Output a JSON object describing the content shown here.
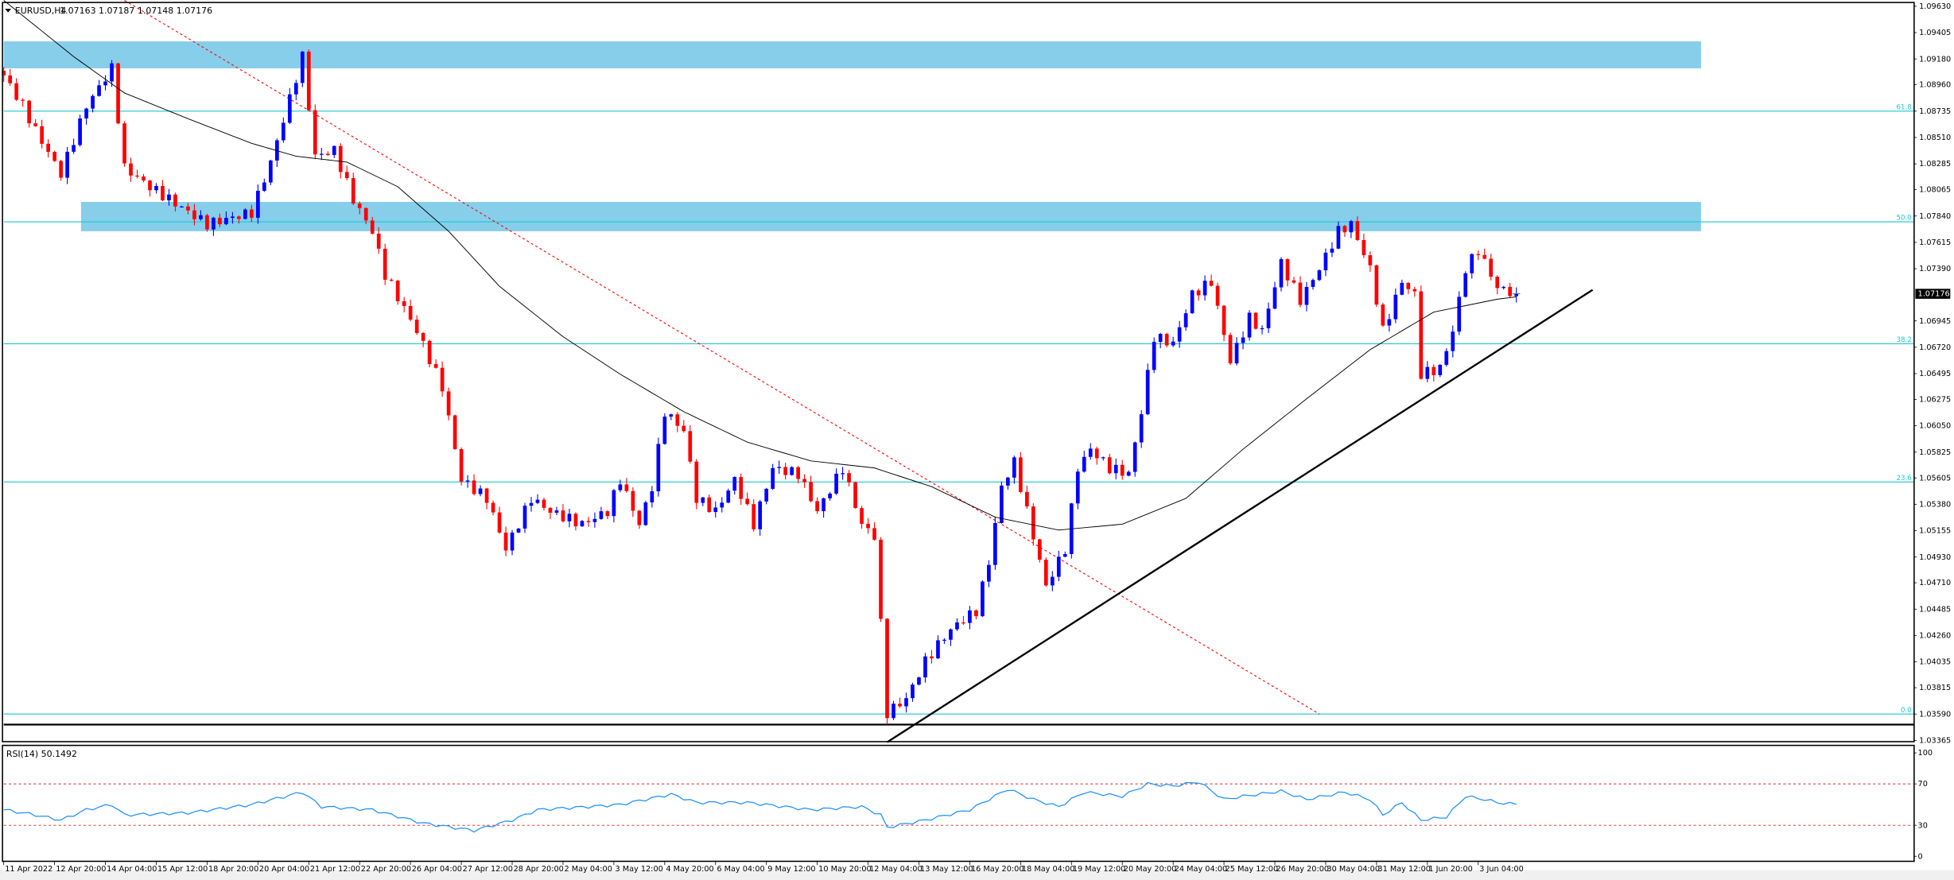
{
  "header": {
    "symbol": "EURUSD,H4",
    "ohlc": "1.07163 1.07187 1.07148 1.07176",
    "menu_icon": "triangle-down-icon"
  },
  "rsi_panel": {
    "label": "RSI(14) 50.1492",
    "levels": [
      "100",
      "70",
      "30",
      "0"
    ]
  },
  "current_price": "1.07176",
  "colors": {
    "bull": "#0000ff",
    "bear": "#ff0000",
    "zone": "#87ceeb",
    "fib": "#19c8d0",
    "sma": "#000000",
    "rsi": "#1e90ff",
    "downtrend": "#ff0000"
  },
  "chart_data": {
    "type": "candlestick",
    "symbol": "EURUSD",
    "timeframe": "H4",
    "ylim": [
      1.03365,
      1.0963
    ],
    "price_ticks": [
      "1.09630",
      "1.09405",
      "1.09180",
      "1.08960",
      "1.08735",
      "1.08510",
      "1.08285",
      "1.08065",
      "1.07840",
      "1.07615",
      "1.07390",
      "1.06945",
      "1.06720",
      "1.06495",
      "1.06275",
      "1.06050",
      "1.05825",
      "1.05605",
      "1.05380",
      "1.05155",
      "1.04930",
      "1.04710",
      "1.04485",
      "1.04260",
      "1.04035",
      "1.03815",
      "1.03590",
      "1.03365"
    ],
    "time_ticks": [
      "11 Apr 2022",
      "12 Apr 20:00",
      "14 Apr 04:00",
      "15 Apr 12:00",
      "18 Apr 20:00",
      "20 Apr 04:00",
      "21 Apr 12:00",
      "22 Apr 20:00",
      "26 Apr 04:00",
      "27 Apr 12:00",
      "28 Apr 20:00",
      "2 May 04:00",
      "3 May 12:00",
      "4 May 20:00",
      "6 May 04:00",
      "9 May 12:00",
      "10 May 20:00",
      "12 May 04:00",
      "13 May 12:00",
      "16 May 20:00",
      "18 May 04:00",
      "19 May 12:00",
      "20 May 20:00",
      "24 May 04:00",
      "25 May 12:00",
      "26 May 20:00",
      "30 May 04:00",
      "31 May 12:00",
      "1 Jun 20:00",
      "3 Jun 04:00"
    ],
    "bars_per_time_tick": 8,
    "close_keypoints": [
      [
        0,
        1.0904
      ],
      [
        3,
        1.0878
      ],
      [
        5,
        1.0857
      ],
      [
        9,
        1.082
      ],
      [
        13,
        1.0878
      ],
      [
        17,
        1.091
      ],
      [
        19,
        1.0825
      ],
      [
        23,
        1.0809
      ],
      [
        32,
        1.0777
      ],
      [
        39,
        1.0787
      ],
      [
        42,
        1.083
      ],
      [
        47,
        1.092
      ],
      [
        49,
        1.0835
      ],
      [
        52,
        1.084
      ],
      [
        55,
        1.0798
      ],
      [
        58,
        1.0771
      ],
      [
        60,
        1.0734
      ],
      [
        65,
        1.0686
      ],
      [
        69,
        1.0638
      ],
      [
        72,
        1.0559
      ],
      [
        76,
        1.0543
      ],
      [
        79,
        1.05
      ],
      [
        83,
        1.0543
      ],
      [
        86,
        1.0532
      ],
      [
        91,
        1.0521
      ],
      [
        95,
        1.0532
      ],
      [
        97,
        1.0559
      ],
      [
        100,
        1.0521
      ],
      [
        102,
        1.0553
      ],
      [
        104,
        1.0617
      ],
      [
        107,
        1.0601
      ],
      [
        109,
        1.0543
      ],
      [
        112,
        1.0532
      ],
      [
        115,
        1.0559
      ],
      [
        118,
        1.0521
      ],
      [
        121,
        1.0569
      ],
      [
        125,
        1.0564
      ],
      [
        128,
        1.0532
      ],
      [
        132,
        1.0569
      ],
      [
        135,
        1.0521
      ],
      [
        137,
        1.0511
      ],
      [
        138,
        1.0436
      ],
      [
        139,
        1.036
      ],
      [
        142,
        1.0372
      ],
      [
        145,
        1.0404
      ],
      [
        148,
        1.0425
      ],
      [
        150,
        1.0436
      ],
      [
        153,
        1.0447
      ],
      [
        155,
        1.0489
      ],
      [
        157,
        1.0553
      ],
      [
        159,
        1.0574
      ],
      [
        162,
        1.0511
      ],
      [
        164,
        1.0468
      ],
      [
        167,
        1.05
      ],
      [
        169,
        1.0569
      ],
      [
        171,
        1.0585
      ],
      [
        174,
        1.0569
      ],
      [
        177,
        1.0564
      ],
      [
        179,
        1.0617
      ],
      [
        181,
        1.0681
      ],
      [
        184,
        1.0675
      ],
      [
        187,
        1.0717
      ],
      [
        190,
        1.0728
      ],
      [
        193,
        1.066
      ],
      [
        196,
        1.0697
      ],
      [
        198,
        1.0686
      ],
      [
        201,
        1.0744
      ],
      [
        204,
        1.0712
      ],
      [
        207,
        1.0739
      ],
      [
        210,
        1.0771
      ],
      [
        212,
        1.0777
      ],
      [
        215,
        1.0739
      ],
      [
        217,
        1.0686
      ],
      [
        220,
        1.0728
      ],
      [
        222,
        1.0717
      ],
      [
        223,
        1.0649
      ],
      [
        226,
        1.0654
      ],
      [
        228,
        1.0686
      ],
      [
        230,
        1.0739
      ],
      [
        232,
        1.0755
      ],
      [
        235,
        1.0723
      ],
      [
        238,
        1.07176
      ]
    ],
    "sma_keypoints": [
      [
        0,
        1.0968
      ],
      [
        11,
        1.092
      ],
      [
        19,
        1.0889
      ],
      [
        29,
        1.0867
      ],
      [
        39,
        1.0846
      ],
      [
        46,
        1.0835
      ],
      [
        54,
        1.083
      ],
      [
        62,
        1.0809
      ],
      [
        70,
        1.0771
      ],
      [
        78,
        1.0724
      ],
      [
        88,
        1.0681
      ],
      [
        97,
        1.0649
      ],
      [
        107,
        1.0617
      ],
      [
        117,
        1.0591
      ],
      [
        127,
        1.0575
      ],
      [
        137,
        1.0569
      ],
      [
        146,
        1.0553
      ],
      [
        156,
        1.0527
      ],
      [
        166,
        1.0516
      ],
      [
        176,
        1.0521
      ],
      [
        186,
        1.0543
      ],
      [
        195,
        1.0585
      ],
      [
        205,
        1.0628
      ],
      [
        215,
        1.067
      ],
      [
        225,
        1.0702
      ],
      [
        235,
        1.0713
      ],
      [
        238,
        1.0715
      ]
    ],
    "rsi_keypoints": [
      [
        0,
        45
      ],
      [
        5,
        40
      ],
      [
        9,
        35
      ],
      [
        13,
        45
      ],
      [
        17,
        50
      ],
      [
        19,
        40
      ],
      [
        29,
        42
      ],
      [
        39,
        50
      ],
      [
        47,
        62
      ],
      [
        50,
        48
      ],
      [
        58,
        45
      ],
      [
        66,
        32
      ],
      [
        74,
        25
      ],
      [
        80,
        35
      ],
      [
        84,
        45
      ],
      [
        92,
        48
      ],
      [
        97,
        50
      ],
      [
        105,
        60
      ],
      [
        109,
        52
      ],
      [
        117,
        52
      ],
      [
        127,
        45
      ],
      [
        135,
        48
      ],
      [
        138,
        40
      ],
      [
        139,
        28
      ],
      [
        145,
        35
      ],
      [
        152,
        45
      ],
      [
        158,
        65
      ],
      [
        162,
        55
      ],
      [
        166,
        48
      ],
      [
        170,
        62
      ],
      [
        176,
        58
      ],
      [
        180,
        70
      ],
      [
        184,
        68
      ],
      [
        188,
        72
      ],
      [
        192,
        55
      ],
      [
        195,
        58
      ],
      [
        201,
        63
      ],
      [
        205,
        55
      ],
      [
        211,
        62
      ],
      [
        215,
        55
      ],
      [
        217,
        40
      ],
      [
        220,
        52
      ],
      [
        223,
        35
      ],
      [
        227,
        38
      ],
      [
        230,
        58
      ],
      [
        233,
        55
      ],
      [
        235,
        52
      ],
      [
        238,
        50.1492
      ]
    ],
    "supply_zones": [
      [
        1.091,
        1.0933
      ],
      [
        1.0771,
        1.0796
      ]
    ],
    "fib_levels": [
      {
        "label": "61.8",
        "price": 1.08735
      },
      {
        "label": "50.0",
        "price": 1.0779
      },
      {
        "label": "38.2",
        "price": 1.0675
      },
      {
        "label": "23.6",
        "price": 1.0557
      },
      {
        "label": "0.0",
        "price": 1.0359
      }
    ],
    "support_line_price": 1.035,
    "uptrend_line": [
      [
        139,
        1.0335
      ],
      [
        250,
        1.0721
      ]
    ],
    "downtrend_line": [
      [
        19,
        1.0968
      ],
      [
        207,
        1.0359
      ]
    ]
  }
}
